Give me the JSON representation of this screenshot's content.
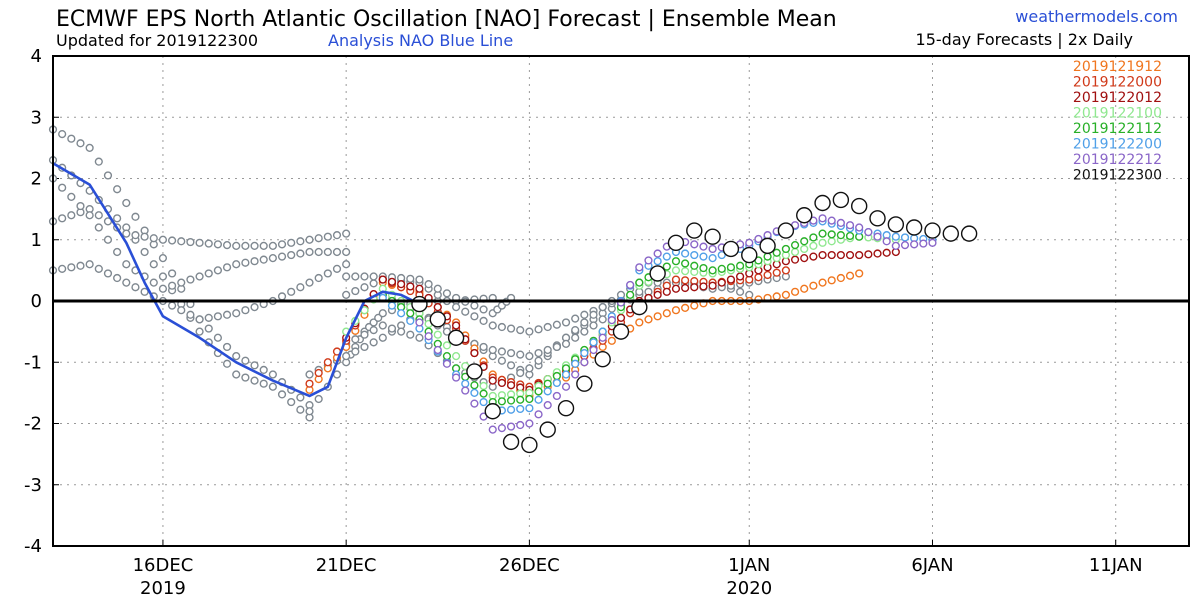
{
  "header": {
    "title": "ECMWF EPS North Atlantic Oscillation [NAO] Forecast | Ensemble Mean",
    "updated": "Updated for 2019122300",
    "analysis_note": "Analysis NAO Blue Line",
    "site": "weathermodels.com",
    "cadence": "15-day Forecasts | 2x Daily"
  },
  "chart_data": {
    "type": "line",
    "title": "ECMWF EPS North Atlantic Oscillation [NAO] Forecast | Ensemble Mean",
    "xlabel": "",
    "ylabel": "",
    "ylim": [
      -4,
      4
    ],
    "xlim": [
      "2019-12-13",
      "2020-01-13"
    ],
    "grid": true,
    "legend_position": "top-right",
    "x_ticks": [
      {
        "date": "2019-12-16",
        "label": "16DEC",
        "year": "2019"
      },
      {
        "date": "2019-12-21",
        "label": "21DEC",
        "year": ""
      },
      {
        "date": "2019-12-26",
        "label": "26DEC",
        "year": ""
      },
      {
        "date": "2020-01-01",
        "label": "1JAN",
        "year": "2020"
      },
      {
        "date": "2020-01-06",
        "label": "6JAN",
        "year": ""
      },
      {
        "date": "2020-01-11",
        "label": "11JAN",
        "year": ""
      }
    ],
    "y_ticks": [
      "4",
      "3",
      "2",
      "1",
      "0",
      "-1",
      "-2",
      "-3",
      "-4"
    ],
    "zero_line": 0,
    "analysis": {
      "color": "#2a4fd6",
      "points": [
        [
          "2019-12-13",
          2.25
        ],
        [
          "2019-12-14",
          1.9
        ],
        [
          "2019-12-15",
          0.95
        ],
        [
          "2019-12-15 12:00",
          0.3
        ],
        [
          "2019-12-16",
          -0.25
        ],
        [
          "2019-12-17",
          -0.6
        ],
        [
          "2019-12-18",
          -1.0
        ],
        [
          "2019-12-19",
          -1.3
        ],
        [
          "2019-12-20",
          -1.55
        ],
        [
          "2019-12-20 12:00",
          -1.4
        ],
        [
          "2019-12-21",
          -0.6
        ],
        [
          "2019-12-21 12:00",
          0.0
        ],
        [
          "2019-12-22",
          0.15
        ],
        [
          "2019-12-22 12:00",
          0.1
        ],
        [
          "2019-12-23",
          -0.05
        ]
      ]
    },
    "gray_ensemble": {
      "color": "#7f8890",
      "tracks": [
        [
          [
            "2019-12-13",
            2.8
          ],
          [
            "2019-12-14",
            2.5
          ],
          [
            "2019-12-15",
            1.6
          ],
          [
            "2019-12-16",
            0.7
          ],
          [
            "2019-12-17",
            -0.3
          ],
          [
            "2019-12-18",
            -0.9
          ],
          [
            "2019-12-19",
            -1.2
          ],
          [
            "2019-12-20",
            -1.7
          ]
        ],
        [
          [
            "2019-12-13",
            2.3
          ],
          [
            "2019-12-14",
            1.8
          ],
          [
            "2019-12-15",
            1.2
          ],
          [
            "2019-12-16",
            0.4
          ],
          [
            "2019-12-17",
            -0.5
          ],
          [
            "2019-12-18",
            -1.2
          ],
          [
            "2019-12-19",
            -1.4
          ],
          [
            "2019-12-20",
            -1.9
          ]
        ],
        [
          [
            "2019-12-13",
            1.3
          ],
          [
            "2019-12-14",
            1.5
          ],
          [
            "2019-12-15",
            1.1
          ],
          [
            "2019-12-16",
            1.0
          ],
          [
            "2019-12-17",
            0.95
          ],
          [
            "2019-12-18",
            0.9
          ],
          [
            "2019-12-19",
            0.9
          ],
          [
            "2019-12-20",
            1.0
          ],
          [
            "2019-12-21",
            1.1
          ]
        ],
        [
          [
            "2019-12-13",
            0.5
          ],
          [
            "2019-12-14",
            0.6
          ],
          [
            "2019-12-15",
            0.3
          ],
          [
            "2019-12-16",
            0.0
          ],
          [
            "2019-12-17",
            -0.3
          ],
          [
            "2019-12-18",
            -0.2
          ],
          [
            "2019-12-19",
            0.0
          ],
          [
            "2019-12-20",
            0.3
          ],
          [
            "2019-12-21",
            0.6
          ]
        ],
        [
          [
            "2019-12-13",
            2.0
          ],
          [
            "2019-12-14",
            1.4
          ],
          [
            "2019-12-15",
            0.6
          ],
          [
            "2019-12-16",
            0.2
          ],
          [
            "2019-12-17",
            0.4
          ],
          [
            "2019-12-18",
            0.6
          ],
          [
            "2019-12-19",
            0.7
          ],
          [
            "2019-12-20",
            0.8
          ],
          [
            "2019-12-21",
            0.8
          ]
        ],
        [
          [
            "2019-12-20",
            -1.8
          ],
          [
            "2019-12-21",
            -1.0
          ],
          [
            "2019-12-21 12:00",
            -0.5
          ],
          [
            "2019-12-22",
            -0.2
          ],
          [
            "2019-12-23",
            0.0
          ],
          [
            "2019-12-24",
            0.0
          ],
          [
            "2019-12-25",
            0.05
          ]
        ],
        [
          [
            "2019-12-20",
            -1.2
          ],
          [
            "2019-12-21",
            -0.9
          ],
          [
            "2019-12-22",
            -0.6
          ],
          [
            "2019-12-23",
            -0.2
          ],
          [
            "2019-12-24",
            -0.5
          ],
          [
            "2019-12-25",
            -0.9
          ],
          [
            "2019-12-26",
            -1.2
          ],
          [
            "2019-12-27",
            -0.6
          ],
          [
            "2019-12-28",
            -0.2
          ],
          [
            "2019-12-29",
            0.1
          ],
          [
            "2019-12-30",
            0.3
          ],
          [
            "2019-12-31",
            0.3
          ],
          [
            "2020-01-01",
            0.1
          ]
        ],
        [
          [
            "2019-12-21",
            0.1
          ],
          [
            "2019-12-22",
            0.35
          ],
          [
            "2019-12-23",
            0.3
          ],
          [
            "2019-12-24",
            -0.1
          ],
          [
            "2019-12-25",
            -0.4
          ],
          [
            "2019-12-26",
            -0.5
          ],
          [
            "2019-12-27",
            -0.35
          ],
          [
            "2019-12-28",
            -0.1
          ],
          [
            "2019-12-29",
            0.15
          ]
        ],
        [
          [
            "2019-12-21",
            0.4
          ],
          [
            "2019-12-22",
            0.4
          ],
          [
            "2019-12-23",
            0.35
          ],
          [
            "2019-12-24",
            0.05
          ],
          [
            "2019-12-25",
            -0.2
          ],
          [
            "2019-12-25 12:00",
            0.05
          ]
        ],
        [
          [
            "2019-12-21",
            -0.7
          ],
          [
            "2019-12-22",
            -0.4
          ],
          [
            "2019-12-23",
            -0.6
          ],
          [
            "2019-12-24",
            -1.1
          ],
          [
            "2019-12-25",
            -1.4
          ],
          [
            "2019-12-26",
            -1.1
          ],
          [
            "2019-12-27",
            -0.6
          ],
          [
            "2019-12-28",
            -0.1
          ],
          [
            "2019-12-29",
            0.3
          ],
          [
            "2019-12-30",
            0.3
          ],
          [
            "2019-12-31",
            0.2
          ],
          [
            "2020-01-01",
            0.3
          ],
          [
            "2020-01-02",
            0.4
          ]
        ],
        [
          [
            "2019-12-22",
            0.1
          ],
          [
            "2019-12-23",
            -0.2
          ],
          [
            "2019-12-24",
            -0.6
          ],
          [
            "2019-12-25",
            -0.8
          ],
          [
            "2019-12-26",
            -0.9
          ],
          [
            "2019-12-27",
            -0.7
          ],
          [
            "2019-12-28",
            -0.3
          ]
        ]
      ]
    },
    "series": [
      {
        "name": "2019121912",
        "color": "#f0761f",
        "size": 3.4,
        "points": [
          [
            "2019-12-20",
            -1.45
          ],
          [
            "2019-12-21",
            -0.75
          ],
          [
            "2019-12-22",
            0.3
          ],
          [
            "2019-12-23",
            0.15
          ],
          [
            "2019-12-24",
            -0.35
          ],
          [
            "2019-12-25",
            -1.2
          ],
          [
            "2019-12-26",
            -1.55
          ],
          [
            "2019-12-27",
            -1.25
          ],
          [
            "2019-12-28",
            -0.75
          ],
          [
            "2019-12-29",
            -0.35
          ],
          [
            "2019-12-30",
            -0.15
          ],
          [
            "2019-12-31",
            0.0
          ],
          [
            "2020-01-01",
            0.0
          ],
          [
            "2020-01-02",
            0.1
          ],
          [
            "2020-01-03",
            0.3
          ],
          [
            "2020-01-04",
            0.45
          ]
        ]
      },
      {
        "name": "2019122000",
        "color": "#d03a1a",
        "size": 3.4,
        "points": [
          [
            "2019-12-20",
            -1.35
          ],
          [
            "2019-12-21",
            -0.65
          ],
          [
            "2019-12-22",
            0.35
          ],
          [
            "2019-12-23",
            0.1
          ],
          [
            "2019-12-24",
            -0.45
          ],
          [
            "2019-12-25",
            -1.25
          ],
          [
            "2019-12-26",
            -1.4
          ],
          [
            "2019-12-27",
            -1.15
          ],
          [
            "2019-12-28",
            -0.65
          ],
          [
            "2019-12-29",
            -0.05
          ],
          [
            "2019-12-30",
            0.35
          ],
          [
            "2019-12-31",
            0.3
          ],
          [
            "2020-01-01",
            0.35
          ],
          [
            "2020-01-02",
            0.5
          ]
        ]
      },
      {
        "name": "2019122012",
        "color": "#a01010",
        "size": 3.4,
        "points": [
          [
            "2019-12-21",
            -0.6
          ],
          [
            "2019-12-22",
            0.35
          ],
          [
            "2019-12-23",
            0.2
          ],
          [
            "2019-12-24",
            -0.4
          ],
          [
            "2019-12-25",
            -1.3
          ],
          [
            "2019-12-26",
            -1.45
          ],
          [
            "2019-12-27",
            -1.1
          ],
          [
            "2019-12-28",
            -0.55
          ],
          [
            "2019-12-29",
            0.0
          ],
          [
            "2019-12-30",
            0.2
          ],
          [
            "2019-12-31",
            0.25
          ],
          [
            "2020-01-01",
            0.45
          ],
          [
            "2020-01-02",
            0.65
          ],
          [
            "2020-01-03",
            0.75
          ],
          [
            "2020-01-04",
            0.75
          ],
          [
            "2020-01-05",
            0.8
          ]
        ]
      },
      {
        "name": "2019122100",
        "color": "#90e890",
        "size": 3.4,
        "points": [
          [
            "2019-12-21",
            -0.5
          ],
          [
            "2019-12-22",
            0.2
          ],
          [
            "2019-12-23",
            -0.2
          ],
          [
            "2019-12-24",
            -0.9
          ],
          [
            "2019-12-25",
            -1.55
          ],
          [
            "2019-12-26",
            -1.5
          ],
          [
            "2019-12-27",
            -1.05
          ],
          [
            "2019-12-28",
            -0.55
          ],
          [
            "2019-12-29",
            0.25
          ],
          [
            "2019-12-30",
            0.5
          ],
          [
            "2019-12-31",
            0.45
          ],
          [
            "2020-01-01",
            0.55
          ],
          [
            "2020-01-02",
            0.75
          ],
          [
            "2020-01-03",
            0.95
          ],
          [
            "2020-01-04",
            1.05
          ],
          [
            "2020-01-05",
            1.0
          ]
        ]
      },
      {
        "name": "2019122112",
        "color": "#28b028",
        "size": 3.4,
        "points": [
          [
            "2019-12-22",
            0.1
          ],
          [
            "2019-12-23",
            -0.3
          ],
          [
            "2019-12-24",
            -1.1
          ],
          [
            "2019-12-25",
            -1.65
          ],
          [
            "2019-12-26",
            -1.6
          ],
          [
            "2019-12-27",
            -1.1
          ],
          [
            "2019-12-28",
            -0.5
          ],
          [
            "2019-12-29",
            0.3
          ],
          [
            "2019-12-30",
            0.65
          ],
          [
            "2019-12-31",
            0.5
          ],
          [
            "2020-01-01",
            0.6
          ],
          [
            "2020-01-02",
            0.85
          ],
          [
            "2020-01-03",
            1.1
          ],
          [
            "2020-01-04",
            1.05
          ]
        ]
      },
      {
        "name": "2019122200",
        "color": "#50a0e8",
        "size": 3.4,
        "points": [
          [
            "2019-12-22",
            0.05
          ],
          [
            "2019-12-23",
            -0.45
          ],
          [
            "2019-12-24",
            -1.2
          ],
          [
            "2019-12-25",
            -1.8
          ],
          [
            "2019-12-26",
            -1.75
          ],
          [
            "2019-12-27",
            -1.2
          ],
          [
            "2019-12-28",
            -0.5
          ],
          [
            "2019-12-29",
            0.5
          ],
          [
            "2019-12-30",
            0.8
          ],
          [
            "2019-12-31",
            0.7
          ],
          [
            "2020-01-01",
            0.9
          ],
          [
            "2020-01-02",
            1.2
          ],
          [
            "2020-01-03",
            1.3
          ],
          [
            "2020-01-04",
            1.15
          ],
          [
            "2020-01-05",
            1.05
          ],
          [
            "2020-01-06",
            1.0
          ]
        ]
      },
      {
        "name": "2019122212",
        "color": "#8a66c8",
        "size": 3.4,
        "points": [
          [
            "2019-12-23",
            -0.35
          ],
          [
            "2019-12-24",
            -1.25
          ],
          [
            "2019-12-25",
            -2.1
          ],
          [
            "2019-12-26",
            -2.0
          ],
          [
            "2019-12-27",
            -1.4
          ],
          [
            "2019-12-28",
            -0.6
          ],
          [
            "2019-12-29",
            0.55
          ],
          [
            "2019-12-30",
            1.0
          ],
          [
            "2019-12-31",
            0.85
          ],
          [
            "2020-01-01",
            0.95
          ],
          [
            "2020-01-02",
            1.2
          ],
          [
            "2020-01-03",
            1.35
          ],
          [
            "2020-01-04",
            1.2
          ],
          [
            "2020-01-05",
            0.9
          ],
          [
            "2020-01-06",
            0.95
          ]
        ]
      },
      {
        "name": "2019122300",
        "color": "#111111",
        "size": 7.5,
        "points": [
          [
            "2019-12-23",
            -0.05
          ],
          [
            "2019-12-23 12:00",
            -0.3
          ],
          [
            "2019-12-24",
            -0.6
          ],
          [
            "2019-12-24 12:00",
            -1.15
          ],
          [
            "2019-12-25",
            -1.8
          ],
          [
            "2019-12-25 12:00",
            -2.3
          ],
          [
            "2019-12-26",
            -2.35
          ],
          [
            "2019-12-26 12:00",
            -2.1
          ],
          [
            "2019-12-27",
            -1.75
          ],
          [
            "2019-12-27 12:00",
            -1.35
          ],
          [
            "2019-12-28",
            -0.95
          ],
          [
            "2019-12-28 12:00",
            -0.5
          ],
          [
            "2019-12-29",
            -0.1
          ],
          [
            "2019-12-29 12:00",
            0.45
          ],
          [
            "2019-12-30",
            0.95
          ],
          [
            "2019-12-30 12:00",
            1.15
          ],
          [
            "2019-12-31",
            1.05
          ],
          [
            "2019-12-31 12:00",
            0.85
          ],
          [
            "2020-01-01",
            0.75
          ],
          [
            "2020-01-01 12:00",
            0.9
          ],
          [
            "2020-01-02",
            1.15
          ],
          [
            "2020-01-02 12:00",
            1.4
          ],
          [
            "2020-01-03",
            1.6
          ],
          [
            "2020-01-03 12:00",
            1.65
          ],
          [
            "2020-01-04",
            1.55
          ],
          [
            "2020-01-04 12:00",
            1.35
          ],
          [
            "2020-01-05",
            1.25
          ],
          [
            "2020-01-05 12:00",
            1.2
          ],
          [
            "2020-01-06",
            1.15
          ],
          [
            "2020-01-06 12:00",
            1.1
          ],
          [
            "2020-01-07",
            1.1
          ]
        ]
      }
    ]
  }
}
